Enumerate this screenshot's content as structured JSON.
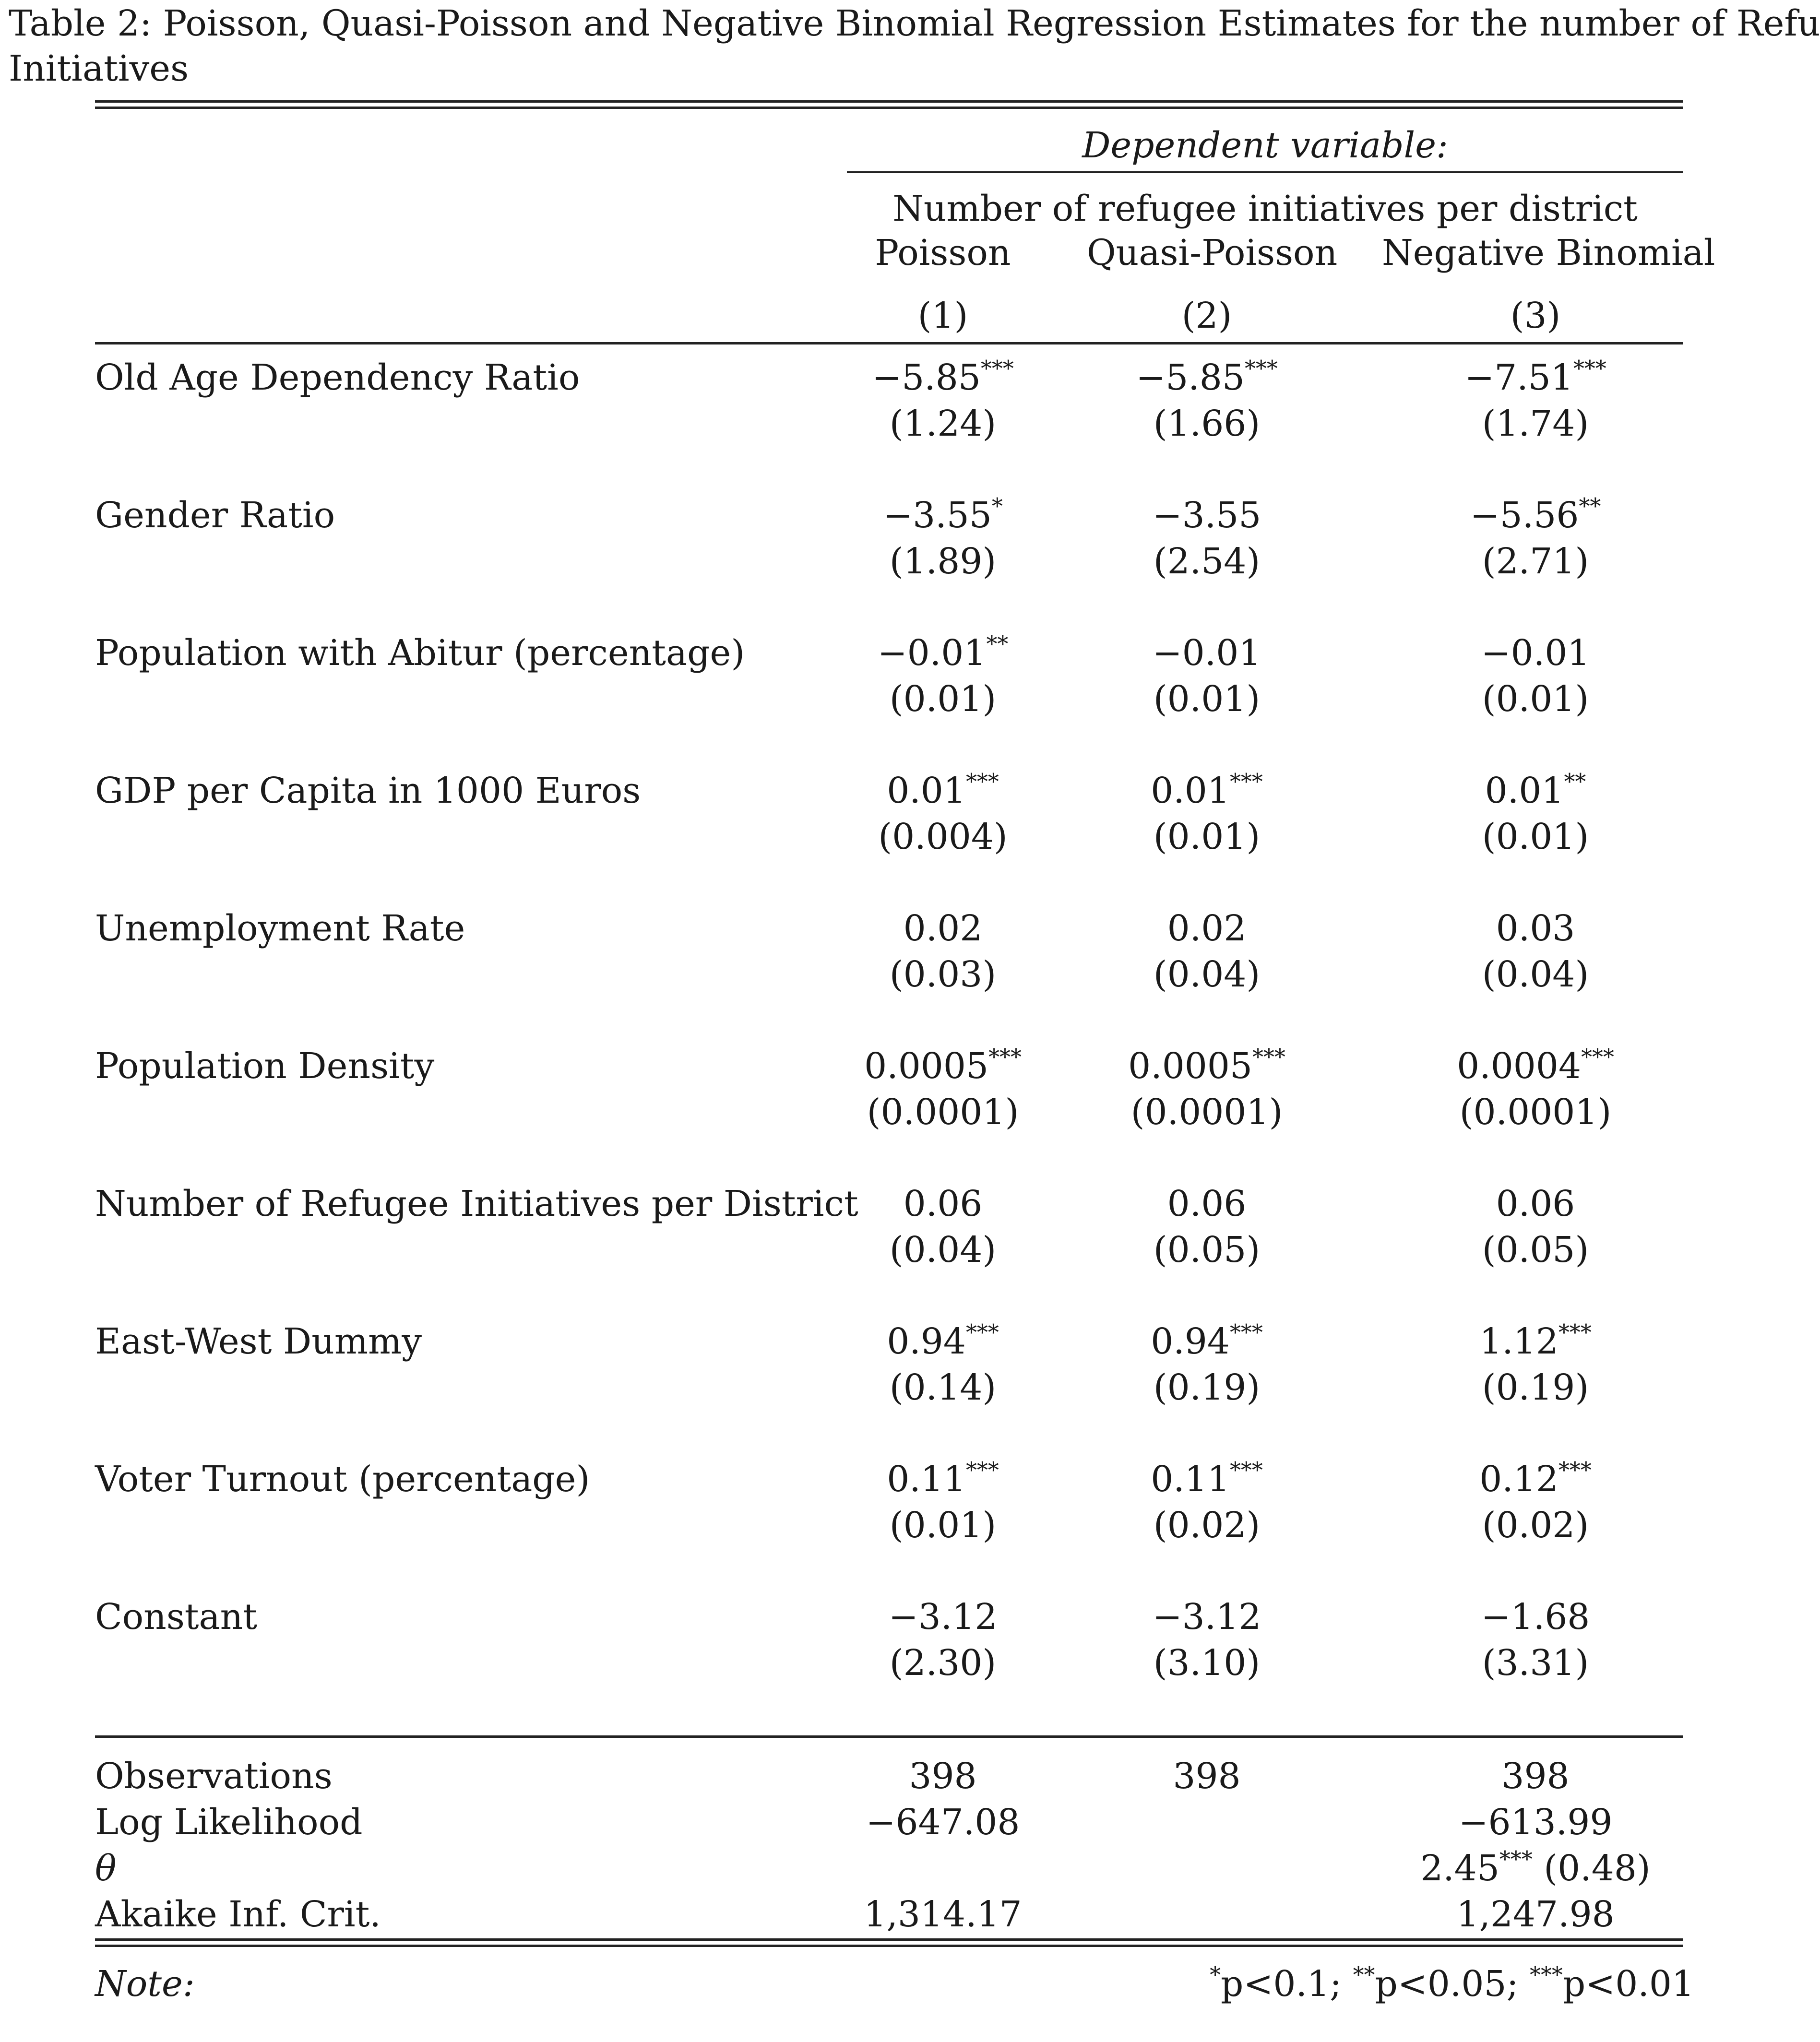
{
  "caption": {
    "line1": "Table 2: Poisson, Quasi-Poisson and Negative Binomial Regression Estimates for the number of Refu",
    "line2": "Initiatives"
  },
  "header": {
    "dep_var": "Dependent variable:",
    "dep_desc": "Number of refugee initiatives per district",
    "models": [
      "Poisson",
      "Quasi-Poisson",
      "Negative Binomial"
    ],
    "numbers": [
      "(1)",
      "(2)",
      "(3)"
    ]
  },
  "rows": [
    {
      "label": "Old Age Dependency Ratio",
      "coef": [
        {
          "v": "−5.85",
          "s": "***"
        },
        {
          "v": "−5.85",
          "s": "***"
        },
        {
          "v": "−7.51",
          "s": "***"
        }
      ],
      "se": [
        "(1.24)",
        "(1.66)",
        "(1.74)"
      ]
    },
    {
      "label": "Gender Ratio",
      "coef": [
        {
          "v": "−3.55",
          "s": "*"
        },
        {
          "v": "−3.55",
          "s": ""
        },
        {
          "v": "−5.56",
          "s": "**"
        }
      ],
      "se": [
        "(1.89)",
        "(2.54)",
        "(2.71)"
      ]
    },
    {
      "label": "Population with Abitur (percentage)",
      "coef": [
        {
          "v": "−0.01",
          "s": "**"
        },
        {
          "v": "−0.01",
          "s": ""
        },
        {
          "v": "−0.01",
          "s": ""
        }
      ],
      "se": [
        "(0.01)",
        "(0.01)",
        "(0.01)"
      ]
    },
    {
      "label": "GDP per Capita in 1000 Euros",
      "coef": [
        {
          "v": "0.01",
          "s": "***"
        },
        {
          "v": "0.01",
          "s": "***"
        },
        {
          "v": "0.01",
          "s": "**"
        }
      ],
      "se": [
        "(0.004)",
        "(0.01)",
        "(0.01)"
      ]
    },
    {
      "label": "Unemployment Rate",
      "coef": [
        {
          "v": "0.02",
          "s": ""
        },
        {
          "v": "0.02",
          "s": ""
        },
        {
          "v": "0.03",
          "s": ""
        }
      ],
      "se": [
        "(0.03)",
        "(0.04)",
        "(0.04)"
      ]
    },
    {
      "label": "Population Density",
      "coef": [
        {
          "v": "0.0005",
          "s": "***"
        },
        {
          "v": "0.0005",
          "s": "***"
        },
        {
          "v": "0.0004",
          "s": "***"
        }
      ],
      "se": [
        "(0.0001)",
        "(0.0001)",
        "(0.0001)"
      ]
    },
    {
      "label": "Number of Refugee Initiatives per District",
      "coef": [
        {
          "v": "0.06",
          "s": ""
        },
        {
          "v": "0.06",
          "s": ""
        },
        {
          "v": "0.06",
          "s": ""
        }
      ],
      "se": [
        "(0.04)",
        "(0.05)",
        "(0.05)"
      ]
    },
    {
      "label": "East-West Dummy",
      "coef": [
        {
          "v": "0.94",
          "s": "***"
        },
        {
          "v": "0.94",
          "s": "***"
        },
        {
          "v": "1.12",
          "s": "***"
        }
      ],
      "se": [
        "(0.14)",
        "(0.19)",
        "(0.19)"
      ]
    },
    {
      "label": "Voter Turnout (percentage)",
      "coef": [
        {
          "v": "0.11",
          "s": "***"
        },
        {
          "v": "0.11",
          "s": "***"
        },
        {
          "v": "0.12",
          "s": "***"
        }
      ],
      "se": [
        "(0.01)",
        "(0.02)",
        "(0.02)"
      ]
    },
    {
      "label": "Constant",
      "coef": [
        {
          "v": "−3.12",
          "s": ""
        },
        {
          "v": "−3.12",
          "s": ""
        },
        {
          "v": "−1.68",
          "s": ""
        }
      ],
      "se": [
        "(2.30)",
        "(3.10)",
        "(3.31)"
      ]
    }
  ],
  "stats": {
    "observations": {
      "label": "Observations",
      "values": [
        "398",
        "398",
        "398"
      ]
    },
    "log_likelihood": {
      "label": "Log Likelihood",
      "values": [
        "−647.08",
        "",
        "−613.99"
      ]
    },
    "theta": {
      "label": "θ",
      "value": "2.45",
      "stars": "***",
      "se": "(0.48)"
    },
    "aic": {
      "label": "Akaike Inf. Crit.",
      "values": [
        "1,314.17",
        "",
        "1,247.98"
      ]
    }
  },
  "note": {
    "label": "Note:",
    "items": [
      {
        "stars": "*",
        "text": "p<0.1;"
      },
      {
        "stars": "**",
        "text": "p<0.05;"
      },
      {
        "stars": "***",
        "text": "p<0.01"
      }
    ]
  }
}
